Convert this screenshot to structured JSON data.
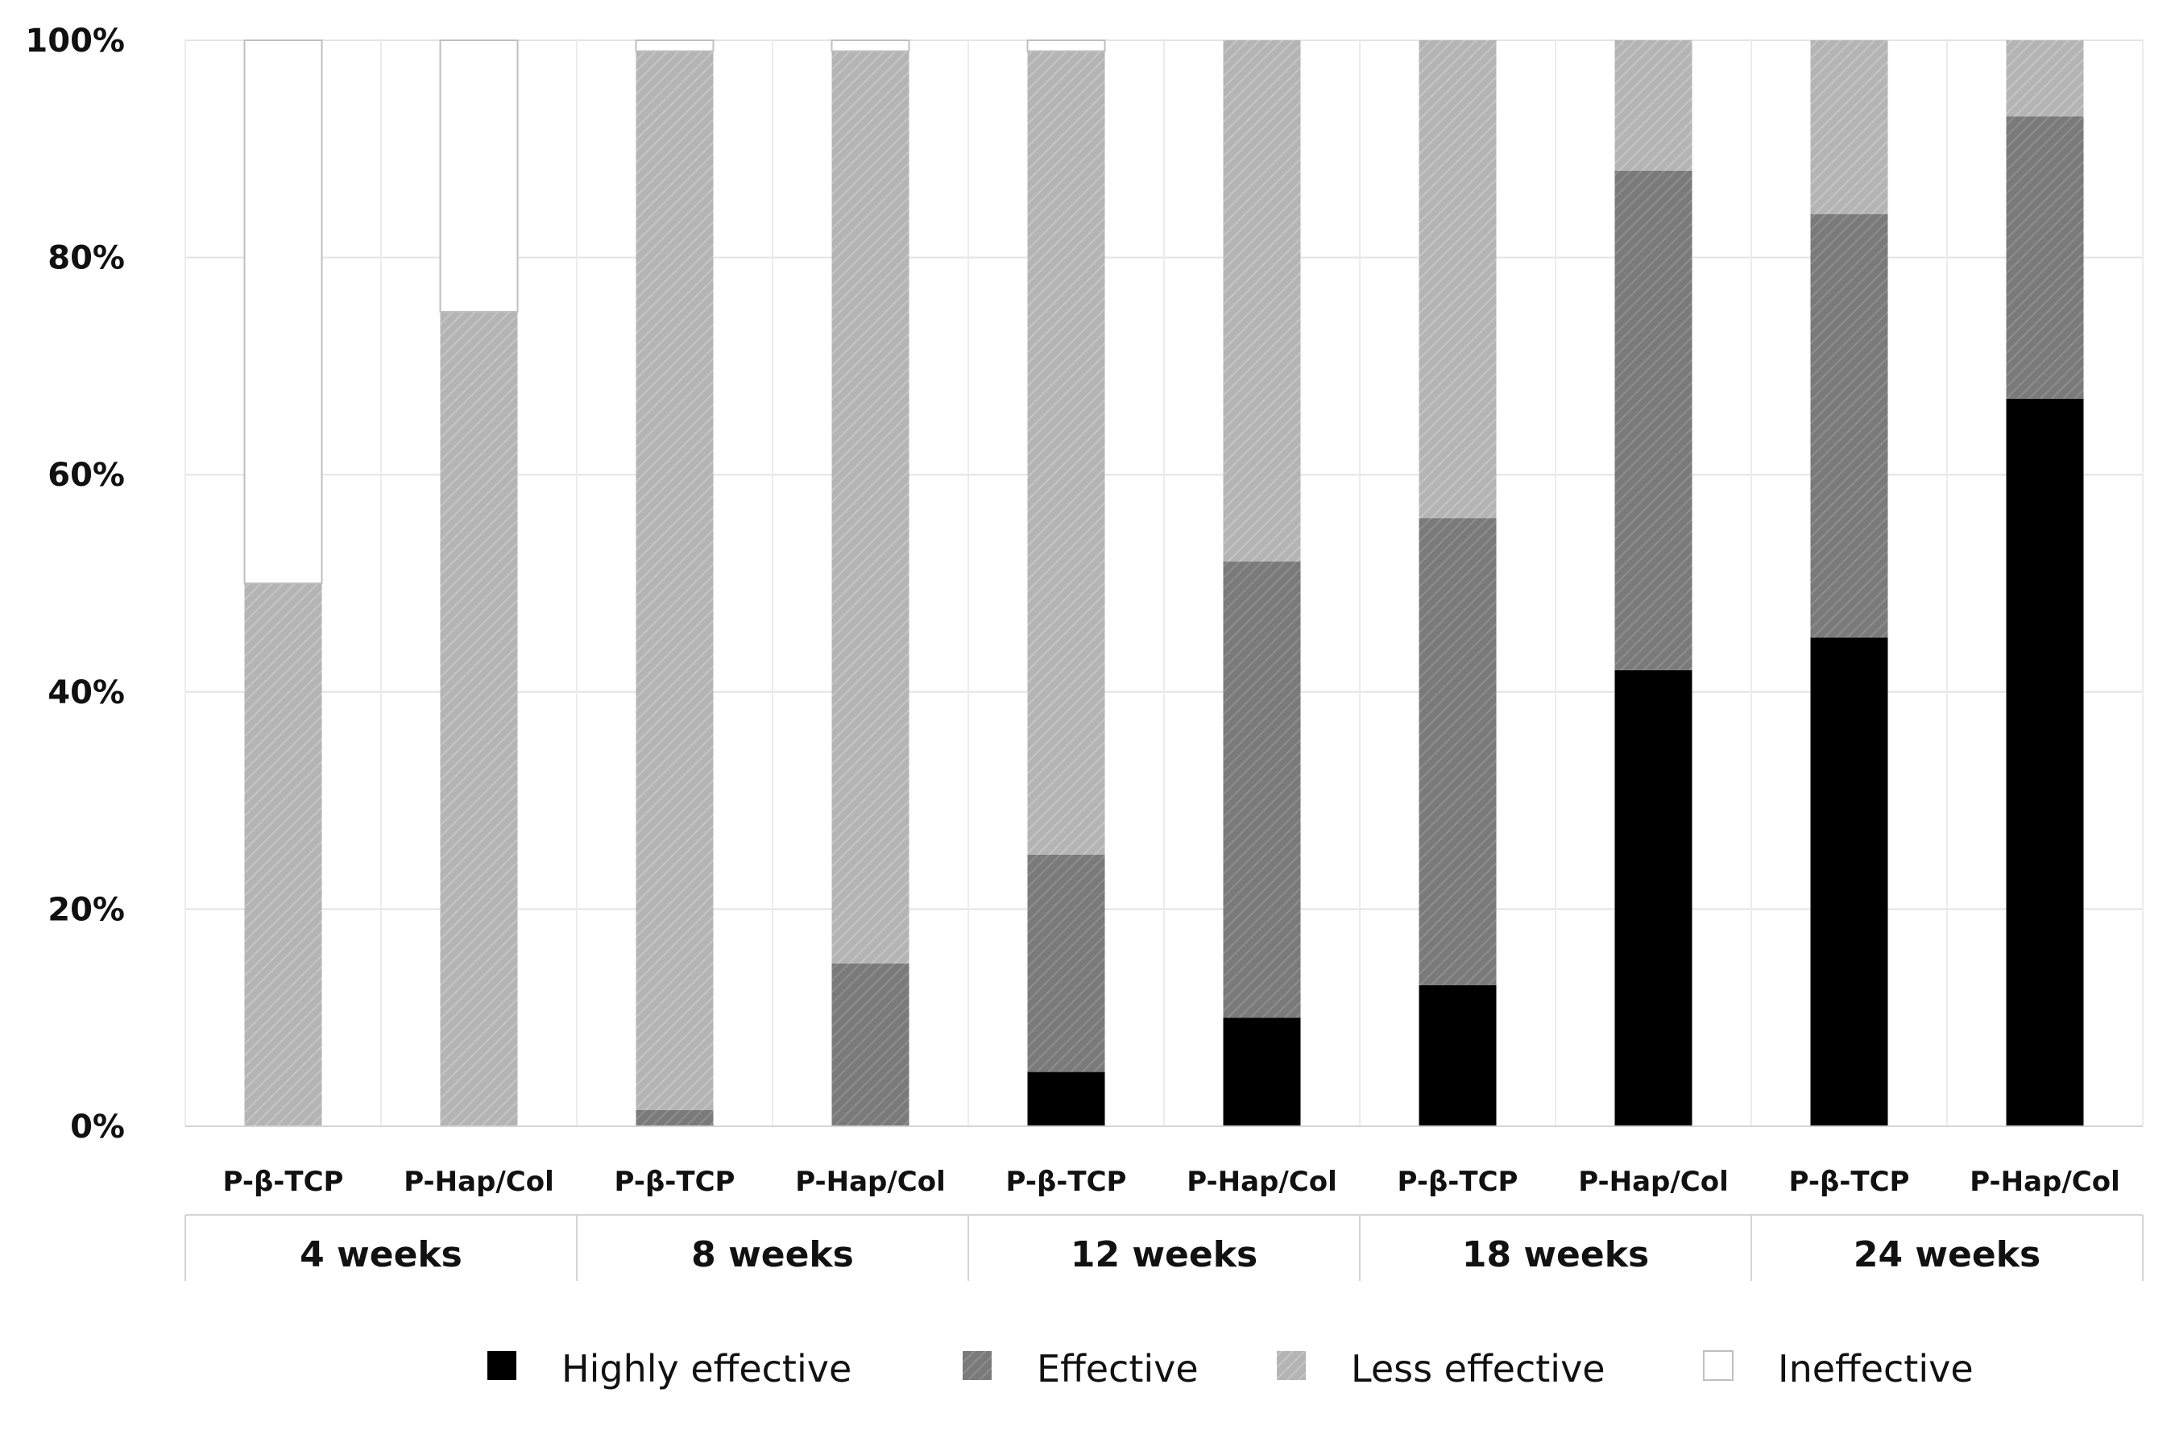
{
  "chart_data": {
    "type": "bar",
    "stacked": true,
    "normalized": true,
    "title": "",
    "xlabel": "",
    "ylabel": "",
    "ylim": [
      0,
      100
    ],
    "yticks": [
      "0%",
      "20%",
      "40%",
      "60%",
      "80%",
      "100%"
    ],
    "yticks_values": [
      0,
      20,
      40,
      60,
      80,
      100
    ],
    "grid": true,
    "legend_position": "bottom",
    "categories": [
      "P-β-TCP",
      "P-Hap/Col",
      "P-β-TCP",
      "P-Hap/Col",
      "P-β-TCP",
      "P-Hap/Col",
      "P-β-TCP",
      "P-Hap/Col",
      "P-β-TCP",
      "P-Hap/Col"
    ],
    "groups": [
      {
        "label": "4 weeks",
        "bar_indices": [
          0,
          1
        ]
      },
      {
        "label": "8 weeks",
        "bar_indices": [
          2,
          3
        ]
      },
      {
        "label": "12 weeks",
        "bar_indices": [
          4,
          5
        ]
      },
      {
        "label": "18 weeks",
        "bar_indices": [
          6,
          7
        ]
      },
      {
        "label": "24 weeks",
        "bar_indices": [
          8,
          9
        ]
      }
    ],
    "series": [
      {
        "name": "Highly effective",
        "color": "#000000",
        "pattern": "solid",
        "values": [
          0,
          0,
          0,
          0,
          5,
          10,
          13,
          42,
          45,
          67
        ]
      },
      {
        "name": "Effective",
        "color": "#7a7a7a",
        "pattern": "hatch",
        "values": [
          0,
          0,
          1.5,
          15,
          20,
          42,
          43,
          46,
          39,
          26
        ]
      },
      {
        "name": "Less effective",
        "color": "#b4b4b4",
        "pattern": "hatch",
        "values": [
          50,
          75,
          97.5,
          84,
          74,
          48,
          44,
          12,
          16,
          7
        ]
      },
      {
        "name": "Ineffective",
        "color": "#ffffff",
        "pattern": "solid",
        "values": [
          50,
          25,
          6.5,
          1.5,
          1.5,
          0,
          0,
          0,
          0,
          0
        ]
      }
    ]
  }
}
